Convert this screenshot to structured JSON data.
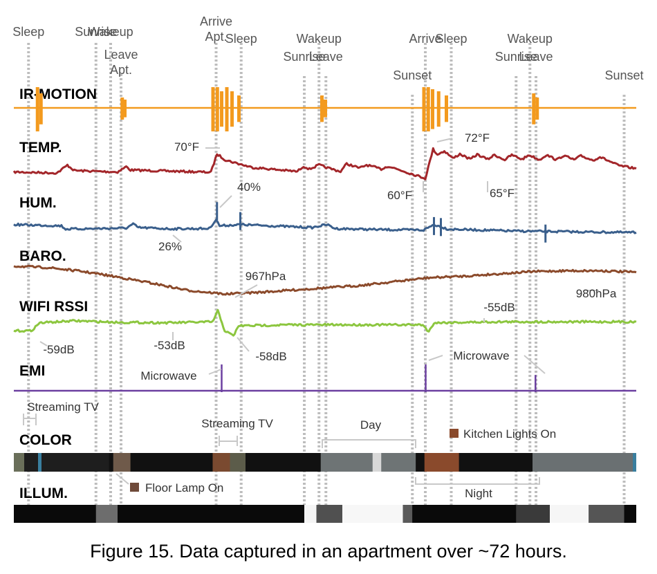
{
  "caption": "Figure 15. Data captured in an apartment over ~72 hours.",
  "chart_data": {
    "type": "line",
    "x_span_hours": 72,
    "events": [
      {
        "label": "Sleep",
        "t": 1.7
      },
      {
        "label": "Sunrise",
        "t": 9.5
      },
      {
        "label": "Wakeup",
        "t": 11.2
      },
      {
        "label": "Leave Apt.",
        "t": 12.4
      },
      {
        "label": "Arrive Apt.",
        "t": 23.4
      },
      {
        "label": "Sleep",
        "t": 26.3
      },
      {
        "label": "Sunrise",
        "t": 33.6
      },
      {
        "label": "Wakeup",
        "t": 35.3
      },
      {
        "label": "Leave",
        "t": 36.1
      },
      {
        "label": "Sunset",
        "t": 46.1
      },
      {
        "label": "Arrive",
        "t": 47.6
      },
      {
        "label": "Sleep",
        "t": 50.6
      },
      {
        "label": "Sunrise",
        "t": 58.1
      },
      {
        "label": "Wakeup",
        "t": 59.7
      },
      {
        "label": "Leave",
        "t": 60.4
      },
      {
        "label": "Sunset",
        "t": 70.6
      }
    ],
    "tracks": [
      {
        "name": "IR-MOTION",
        "color": "#f39a1e",
        "kind": "spikes",
        "baseline": 0,
        "spikes": [
          [
            2.7,
            1.0
          ],
          [
            3.1,
            0.7
          ],
          [
            12.5,
            0.5
          ],
          [
            12.8,
            0.4
          ],
          [
            23.0,
            1.0
          ],
          [
            23.5,
            1.0
          ],
          [
            24.0,
            0.8
          ],
          [
            24.6,
            1.0
          ],
          [
            25.2,
            0.8
          ],
          [
            26.0,
            0.6
          ],
          [
            35.6,
            0.6
          ],
          [
            36.0,
            0.4
          ],
          [
            47.4,
            1.0
          ],
          [
            47.9,
            1.0
          ],
          [
            48.4,
            0.9
          ],
          [
            49.1,
            0.8
          ],
          [
            50.0,
            0.6
          ],
          [
            60.1,
            0.7
          ],
          [
            60.5,
            0.5
          ]
        ]
      },
      {
        "name": "TEMP.",
        "color": "#a3262a",
        "kind": "line",
        "unit": "°F",
        "points": [
          [
            0,
            62.6
          ],
          [
            5,
            62.2
          ],
          [
            6.2,
            65.4
          ],
          [
            7,
            63.2
          ],
          [
            12,
            62.6
          ],
          [
            13,
            64.8
          ],
          [
            13.5,
            63.4
          ],
          [
            22.8,
            62.5
          ],
          [
            23.5,
            70
          ],
          [
            24.5,
            67.5
          ],
          [
            27.5,
            64.5
          ],
          [
            32.8,
            62.8
          ],
          [
            33.5,
            65
          ],
          [
            34.2,
            63.8
          ],
          [
            35.3,
            65.5
          ],
          [
            36.3,
            64.3
          ],
          [
            37.8,
            62.8
          ],
          [
            38.5,
            66
          ],
          [
            40,
            64.2
          ],
          [
            40.8,
            65.5
          ],
          [
            42.5,
            63.8
          ],
          [
            43.3,
            65
          ],
          [
            44.5,
            63.6
          ],
          [
            47.6,
            60
          ],
          [
            48.5,
            72
          ],
          [
            49,
            69.8
          ],
          [
            49.8,
            71.2
          ],
          [
            50.8,
            68.2
          ],
          [
            51.6,
            70
          ],
          [
            52.8,
            67.8
          ],
          [
            53.6,
            69.8
          ],
          [
            54.8,
            67.8
          ],
          [
            55.6,
            69.6
          ],
          [
            56.8,
            67.6
          ],
          [
            57.6,
            69.6
          ],
          [
            58.8,
            67.8
          ],
          [
            59.6,
            69.6
          ],
          [
            60.8,
            67.6
          ],
          [
            61.6,
            69.6
          ],
          [
            62.8,
            67.6
          ],
          [
            63.6,
            69.4
          ],
          [
            64.8,
            67.6
          ],
          [
            65.6,
            69.2
          ],
          [
            67,
            67.4
          ],
          [
            67.8,
            68.8
          ],
          [
            70,
            65.2
          ],
          [
            72,
            64
          ]
        ],
        "annotations": [
          {
            "label": "70°F",
            "t": 23.5
          },
          {
            "label": "60°F",
            "t": 47.6
          },
          {
            "label": "72°F",
            "t": 48.5
          },
          {
            "label": "65°F",
            "t": 54.5
          }
        ]
      },
      {
        "name": "HUM.",
        "color": "#3a5f8c",
        "kind": "line",
        "unit": "%",
        "points": [
          [
            0,
            31
          ],
          [
            5.5,
            30.5
          ],
          [
            6,
            29.2
          ],
          [
            13,
            29.6
          ],
          [
            13.8,
            31.2
          ],
          [
            14.4,
            29.8
          ],
          [
            18,
            29.3
          ],
          [
            22.6,
            29.4
          ],
          [
            23.4,
            33
          ],
          [
            23.8,
            30.5
          ],
          [
            25.2,
            30.8
          ],
          [
            26.2,
            31
          ],
          [
            34.5,
            29.8
          ],
          [
            36.2,
            31
          ],
          [
            37.2,
            29.4
          ],
          [
            42,
            29
          ],
          [
            47.4,
            28.8
          ],
          [
            48.6,
            31
          ],
          [
            50.2,
            29.2
          ],
          [
            53,
            28.9
          ],
          [
            58,
            28.4
          ],
          [
            72,
            27.8
          ]
        ],
        "spikes": [
          [
            23.5,
            40
          ],
          [
            26.2,
            36
          ],
          [
            48.6,
            34
          ],
          [
            49.4,
            33.6
          ],
          [
            61.5,
            31
          ]
        ],
        "annotations": [
          {
            "label": "40%",
            "t": 23.5
          },
          {
            "label": "26%",
            "t": 18
          }
        ]
      },
      {
        "name": "BARO.",
        "color": "#8b4a2b",
        "kind": "line",
        "unit": "hPa",
        "points": [
          [
            0,
            985
          ],
          [
            4,
            984
          ],
          [
            8,
            981.5
          ],
          [
            12,
            978
          ],
          [
            16,
            974
          ],
          [
            20,
            969.5
          ],
          [
            24.5,
            967
          ],
          [
            28,
            968
          ],
          [
            32,
            969.5
          ],
          [
            36,
            971
          ],
          [
            40,
            972.5
          ],
          [
            44,
            975
          ],
          [
            48,
            977.5
          ],
          [
            52,
            978.5
          ],
          [
            56,
            980
          ],
          [
            60,
            981.5
          ],
          [
            64,
            982
          ],
          [
            68,
            982
          ],
          [
            72,
            981
          ]
        ],
        "annotations": [
          {
            "label": "967hPa",
            "t": 24.5
          },
          {
            "label": "980hPa",
            "t": 66
          }
        ]
      },
      {
        "name": "WIFI RSSI",
        "color": "#8cc63f",
        "kind": "line",
        "unit": "dB",
        "points": [
          [
            0,
            -57
          ],
          [
            2,
            -57
          ],
          [
            3,
            -55.4
          ],
          [
            7,
            -55
          ],
          [
            12,
            -55.3
          ],
          [
            18,
            -55.4
          ],
          [
            23,
            -55.2
          ],
          [
            23.6,
            -53
          ],
          [
            24.4,
            -57
          ],
          [
            25.4,
            -58
          ],
          [
            26,
            -56
          ],
          [
            32,
            -55.8
          ],
          [
            40,
            -55.8
          ],
          [
            47.3,
            -55.8
          ],
          [
            48,
            -57.2
          ],
          [
            48.6,
            -55.4
          ],
          [
            56,
            -55.2
          ],
          [
            72,
            -55.2
          ]
        ],
        "annotations": [
          {
            "label": "-59dB",
            "t": 3
          },
          {
            "label": "-53dB",
            "t": 18
          },
          {
            "label": "-58dB",
            "t": 26
          },
          {
            "label": "-55dB",
            "t": 56
          }
        ]
      },
      {
        "name": "EMI",
        "color": "#6b3fa0",
        "kind": "spikes",
        "baseline": 0,
        "spikes": [
          [
            24.1,
            1.0
          ],
          [
            47.7,
            1.0
          ],
          [
            60.4,
            0.6
          ]
        ],
        "annotations": [
          {
            "label": "Microwave",
            "t": 24.1
          },
          {
            "label": "Microwave",
            "t": 47.7
          }
        ]
      },
      {
        "name": "COLOR",
        "kind": "band",
        "segments": [
          [
            0,
            11,
            "#1e1e1e"
          ],
          [
            0,
            1.2,
            "#6a6f5a"
          ],
          [
            2.8,
            3.2,
            "#3a7f9f"
          ],
          [
            11.5,
            13.5,
            "#6f5a4a"
          ],
          [
            13.5,
            23,
            "#111111"
          ],
          [
            23,
            25,
            "#7a4a30"
          ],
          [
            25,
            26.8,
            "#5c5c4a"
          ],
          [
            26.8,
            35.5,
            "#111111"
          ],
          [
            35.5,
            46.5,
            "#6e7475"
          ],
          [
            41.5,
            42.5,
            "#d8d8d8"
          ],
          [
            46.5,
            47.5,
            "#111111"
          ],
          [
            47.5,
            51.5,
            "#8a4a2c"
          ],
          [
            51.5,
            60,
            "#111111"
          ],
          [
            60,
            71.6,
            "#6a7072"
          ],
          [
            71.6,
            72,
            "#3a7f9f"
          ]
        ],
        "annotations": [
          {
            "label": "Streaming TV",
            "t": 1
          },
          {
            "label": "Streaming TV",
            "t": 24
          },
          {
            "label": "Day",
            "t": 41
          },
          {
            "label": "Kitchen Lights On",
            "t": 49.5
          },
          {
            "label": "Floor Lamp On",
            "t": 12.6
          },
          {
            "label": "Night",
            "t": 53.5
          }
        ]
      },
      {
        "name": "ILLUM.",
        "kind": "band",
        "segments": [
          [
            0,
            9.5,
            "#0a0a0a"
          ],
          [
            9.5,
            12,
            "#6d6d6d"
          ],
          [
            12,
            33.6,
            "#0a0a0a"
          ],
          [
            33.6,
            35,
            "#f4f4f4"
          ],
          [
            35,
            38,
            "#505050"
          ],
          [
            38,
            45,
            "#f7f7f7"
          ],
          [
            45,
            46.1,
            "#5a5a5a"
          ],
          [
            46.1,
            58.1,
            "#0a0a0a"
          ],
          [
            58.1,
            62,
            "#3a3a3a"
          ],
          [
            62,
            66.5,
            "#f6f6f6"
          ],
          [
            66.5,
            70.6,
            "#555555"
          ],
          [
            70.6,
            72,
            "#0a0a0a"
          ]
        ]
      }
    ]
  }
}
